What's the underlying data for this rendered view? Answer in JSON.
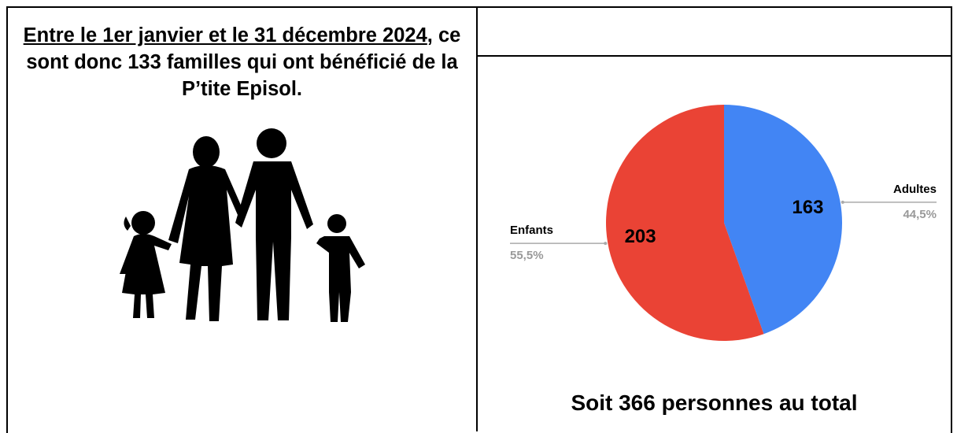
{
  "heading": {
    "underlined": "Entre le 1er janvier et le 31 décembre 2024",
    "rest": ", ce sont donc 133 familles qui ont bénéficié de la P’tite Episol."
  },
  "chart_data": {
    "type": "pie",
    "categories": [
      "Adultes",
      "Enfants"
    ],
    "values": [
      163,
      203
    ],
    "percent_labels": [
      "44,5%",
      "55,5%"
    ],
    "colors": [
      "#4285f4",
      "#ea4335"
    ]
  },
  "total": "Soit 366 personnes au total"
}
